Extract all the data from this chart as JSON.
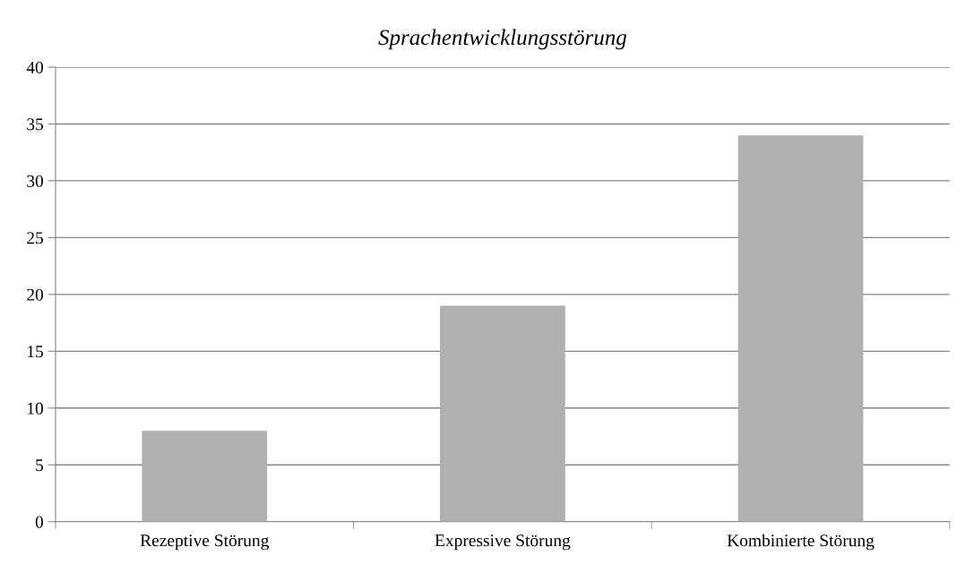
{
  "chart_data": {
    "type": "bar",
    "title": "Sprachentwicklungsstörung",
    "categories": [
      "Rezeptive Störung",
      "Expressive Störung",
      "Kombinierte Störung"
    ],
    "values": [
      8,
      19,
      34
    ],
    "color": "#b0b0b0",
    "ylim": [
      0,
      40
    ],
    "yticks": [
      0,
      5,
      10,
      15,
      20,
      25,
      30,
      35,
      40
    ],
    "grid": "y",
    "legend": false
  }
}
